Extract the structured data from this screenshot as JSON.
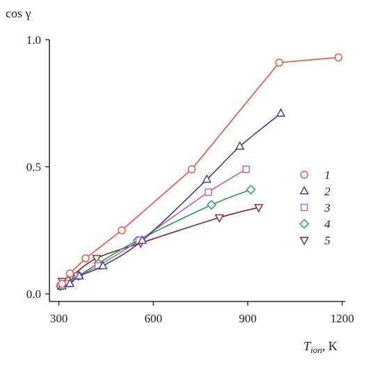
{
  "chart_data": {
    "type": "line",
    "ylabel": "cos γ",
    "xlabel_main": "T",
    "xlabel_sub": "ion",
    "xlabel_unit": ", K",
    "xlim": [
      270,
      1210
    ],
    "ylim": [
      -0.03,
      1.0
    ],
    "xticks": [
      300,
      600,
      900,
      1200
    ],
    "xtick_labels": [
      "300",
      "600",
      "900",
      "1200"
    ],
    "yticks": [
      0.0,
      0.5,
      1.0
    ],
    "ytick_labels": [
      "0.0",
      "0.5",
      "1.0"
    ],
    "legend_position": "right",
    "series": [
      {
        "name": "1",
        "color": "#e8513e",
        "marker": "circle",
        "smooth": false,
        "x": [
          310,
          335,
          385,
          500,
          722,
          1000,
          1188
        ],
        "y": [
          0.04,
          0.08,
          0.14,
          0.25,
          0.49,
          0.91,
          0.93
        ]
      },
      {
        "name": "2",
        "color": "#3a3a9a",
        "marker": "triangle-up",
        "smooth": true,
        "x": [
          310,
          335,
          365,
          440,
          565,
          770,
          875,
          1005
        ],
        "y": [
          0.03,
          0.04,
          0.07,
          0.11,
          0.21,
          0.45,
          0.58,
          0.71
        ]
      },
      {
        "name": "3",
        "color": "#c257b8",
        "marker": "square",
        "smooth": true,
        "x": [
          305,
          330,
          360,
          425,
          555,
          775,
          895
        ],
        "y": [
          0.03,
          0.04,
          0.07,
          0.11,
          0.21,
          0.4,
          0.49
        ]
      },
      {
        "name": "4",
        "color": "#1aa34a",
        "marker": "diamond",
        "smooth": true,
        "x": [
          305,
          330,
          362,
          425,
          550,
          785,
          910
        ],
        "y": [
          0.03,
          0.05,
          0.07,
          0.12,
          0.21,
          0.35,
          0.41
        ]
      },
      {
        "name": "5",
        "color": "#8a1f2a",
        "marker": "triangle-down",
        "smooth": true,
        "x": [
          310,
          340,
          420,
          560,
          810,
          935
        ],
        "y": [
          0.05,
          0.07,
          0.14,
          0.2,
          0.3,
          0.34
        ]
      }
    ]
  }
}
